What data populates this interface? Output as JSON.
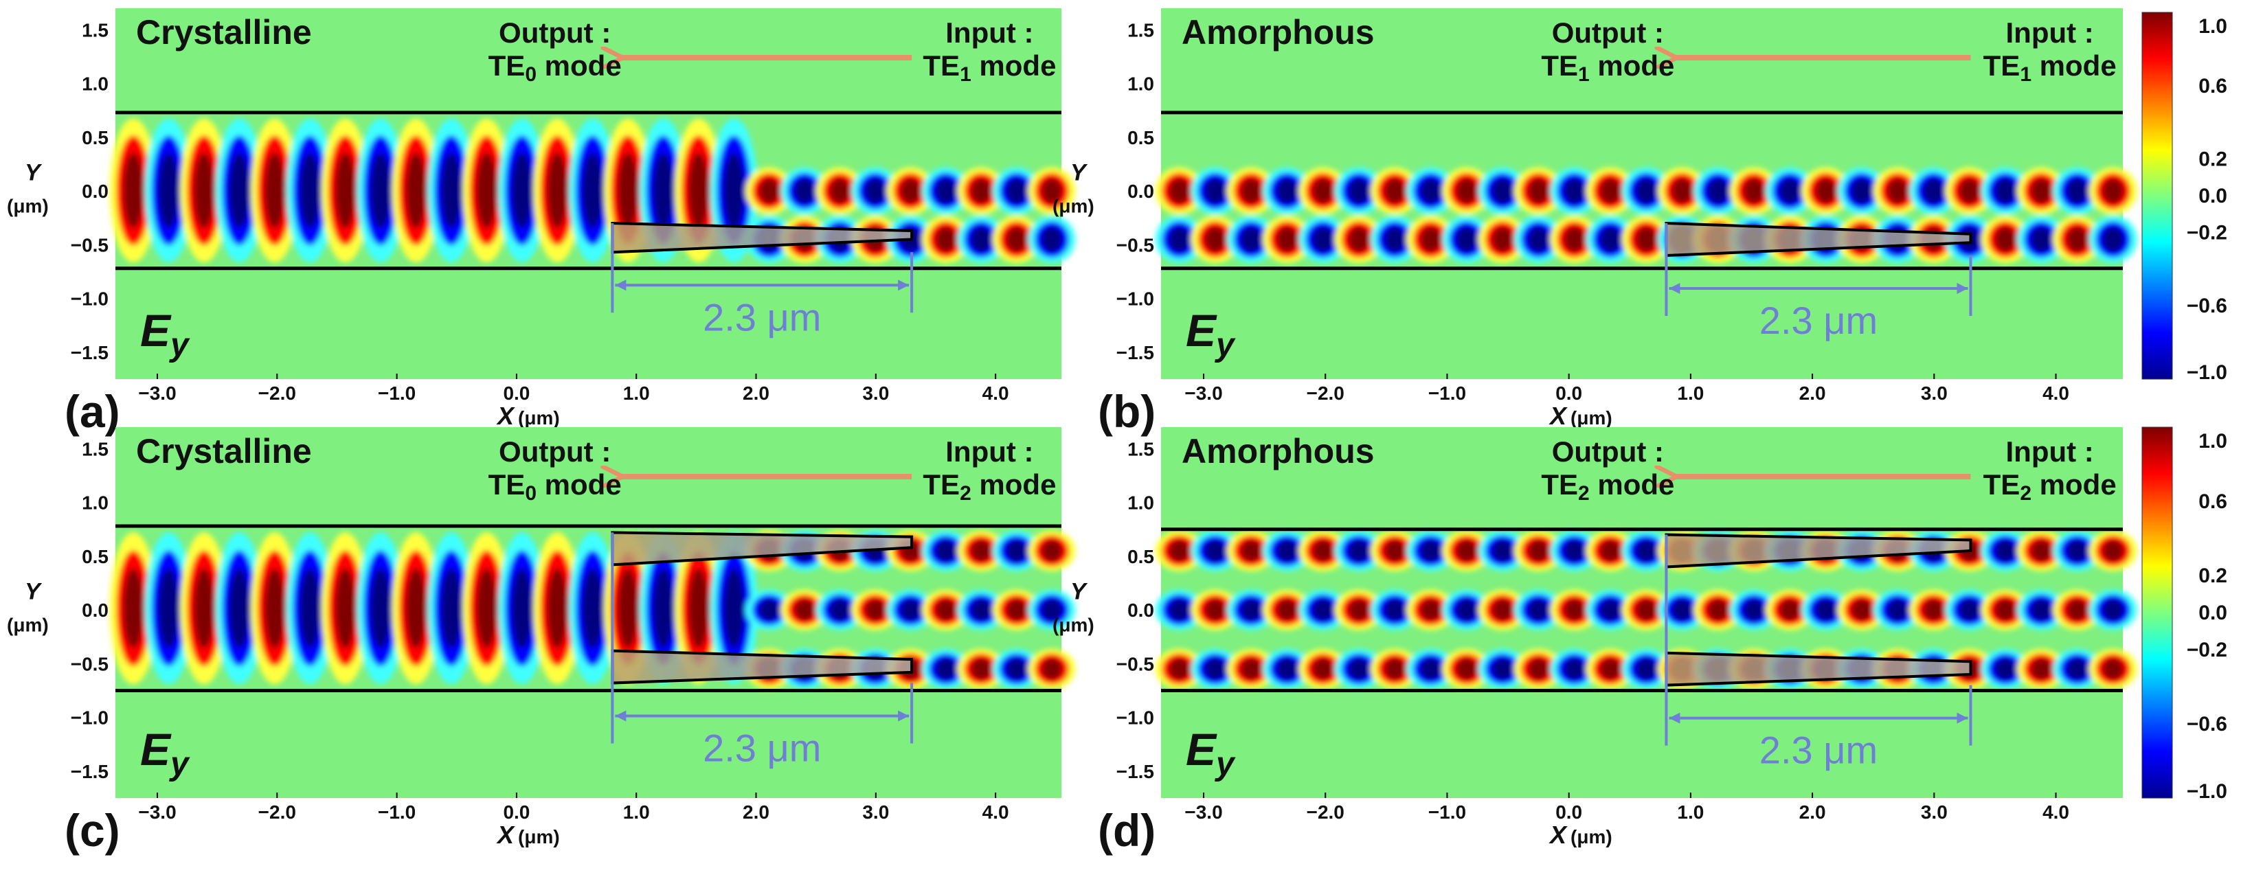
{
  "chart_data": [
    {
      "type": "heatmap",
      "panel_label": "(a)",
      "title": "Crystalline",
      "field_label": "E",
      "field_subscript": "y",
      "output_text": "Output :",
      "output_mode": "TE",
      "output_mode_sub": "0",
      "output_mode_suffix": " mode",
      "input_text": "Input :",
      "input_mode": "TE",
      "input_mode_sub": "1",
      "input_mode_suffix": " mode",
      "taper_length_label": "2.3 μm",
      "xlabel": "X",
      "xlabel_unit": "(μm)",
      "ylabel": "Y",
      "ylabel_unit": "(μm)",
      "xticks": [
        "−3.0",
        "−2.0",
        "−1.0",
        "0.0",
        "1.0",
        "2.0",
        "3.0",
        "4.0"
      ],
      "yticks": [
        "1.5",
        "1.0",
        "0.5",
        "0.0",
        "−0.5",
        "−1.0",
        "−1.5"
      ],
      "xlim": [
        -3.35,
        4.55
      ],
      "ylim": [
        -1.75,
        1.7
      ],
      "waveguide_y": [
        -0.72,
        0.73
      ],
      "taper_x": [
        0.8,
        3.3
      ],
      "tapers_y": [
        [
          -0.57,
          -0.3,
          -0.45,
          -0.37
        ]
      ]
    },
    {
      "type": "heatmap",
      "panel_label": "(b)",
      "title": "Amorphous",
      "field_label": "E",
      "field_subscript": "y",
      "output_text": "Output :",
      "output_mode": "TE",
      "output_mode_sub": "1",
      "output_mode_suffix": " mode",
      "input_text": "Input :",
      "input_mode": "TE",
      "input_mode_sub": "1",
      "input_mode_suffix": " mode",
      "taper_length_label": "2.3 μm",
      "xlabel": "X",
      "xlabel_unit": "(μm)",
      "ylabel": "Y",
      "ylabel_unit": "(μm)",
      "xticks": [
        "−3.0",
        "−2.0",
        "−1.0",
        "0.0",
        "1.0",
        "2.0",
        "3.0",
        "4.0"
      ],
      "yticks": [
        "1.5",
        "1.0",
        "0.5",
        "0.0",
        "−0.5",
        "−1.0",
        "−1.5"
      ],
      "xlim": [
        -3.35,
        4.55
      ],
      "ylim": [
        -1.75,
        1.7
      ],
      "waveguide_y": [
        -0.72,
        0.73
      ],
      "taper_x": [
        0.8,
        3.3
      ],
      "tapers_y": [
        [
          -0.6,
          -0.3,
          -0.48,
          -0.4
        ]
      ]
    },
    {
      "type": "heatmap",
      "panel_label": "(c)",
      "title": "Crystalline",
      "field_label": "E",
      "field_subscript": "y",
      "output_text": "Output :",
      "output_mode": "TE",
      "output_mode_sub": "0",
      "output_mode_suffix": " mode",
      "input_text": "Input :",
      "input_mode": "TE",
      "input_mode_sub": "2",
      "input_mode_suffix": " mode",
      "taper_length_label": "2.3 μm",
      "xlabel": "X",
      "xlabel_unit": "(μm)",
      "ylabel": "Y",
      "ylabel_unit": "(μm)",
      "xticks": [
        "−3.0",
        "−2.0",
        "−1.0",
        "0.0",
        "1.0",
        "2.0",
        "3.0",
        "4.0"
      ],
      "yticks": [
        "1.5",
        "1.0",
        "0.5",
        "0.0",
        "−0.5",
        "−1.0",
        "−1.5"
      ],
      "xlim": [
        -3.35,
        4.55
      ],
      "ylim": [
        -1.75,
        1.7
      ],
      "waveguide_y": [
        -0.75,
        0.78
      ],
      "taper_x": [
        0.8,
        3.3
      ],
      "tapers_y": [
        [
          0.42,
          0.72,
          0.58,
          0.68
        ],
        [
          -0.68,
          -0.38,
          -0.58,
          -0.46
        ]
      ]
    },
    {
      "type": "heatmap",
      "panel_label": "(d)",
      "title": "Amorphous",
      "field_label": "E",
      "field_subscript": "y",
      "output_text": "Output :",
      "output_mode": "TE",
      "output_mode_sub": "2",
      "output_mode_suffix": " mode",
      "input_text": "Input :",
      "input_mode": "TE",
      "input_mode_sub": "2",
      "input_mode_suffix": " mode",
      "taper_length_label": "2.3 μm",
      "xlabel": "X",
      "xlabel_unit": "(μm)",
      "ylabel": "Y",
      "ylabel_unit": "(μm)",
      "xticks": [
        "−3.0",
        "−2.0",
        "−1.0",
        "0.0",
        "1.0",
        "2.0",
        "3.0",
        "4.0"
      ],
      "yticks": [
        "1.5",
        "1.0",
        "0.5",
        "0.0",
        "−0.5",
        "−1.0",
        "−1.5"
      ],
      "xlim": [
        -3.35,
        4.55
      ],
      "ylim": [
        -1.75,
        1.7
      ],
      "waveguide_y": [
        -0.75,
        0.75
      ],
      "taper_x": [
        0.8,
        3.3
      ],
      "tapers_y": [
        [
          0.4,
          0.7,
          0.55,
          0.65
        ],
        [
          -0.7,
          -0.4,
          -0.6,
          -0.48
        ]
      ]
    }
  ],
  "colorbar": {
    "label_values": [
      1.0,
      0.6,
      0.2,
      0.0,
      -0.2,
      -0.6,
      -1.0
    ],
    "label_text": [
      "1.0",
      "0.6",
      "0.2",
      "0.0",
      "−0.2",
      "−0.6",
      "−1.0"
    ],
    "range": [
      -1.0,
      1.0
    ],
    "colormap": "jet"
  },
  "colors": {
    "background_field": "#7fef7f",
    "arrow": "#e8906a",
    "measure": "#6f7fd6",
    "taper_fill": "#a8a898"
  }
}
